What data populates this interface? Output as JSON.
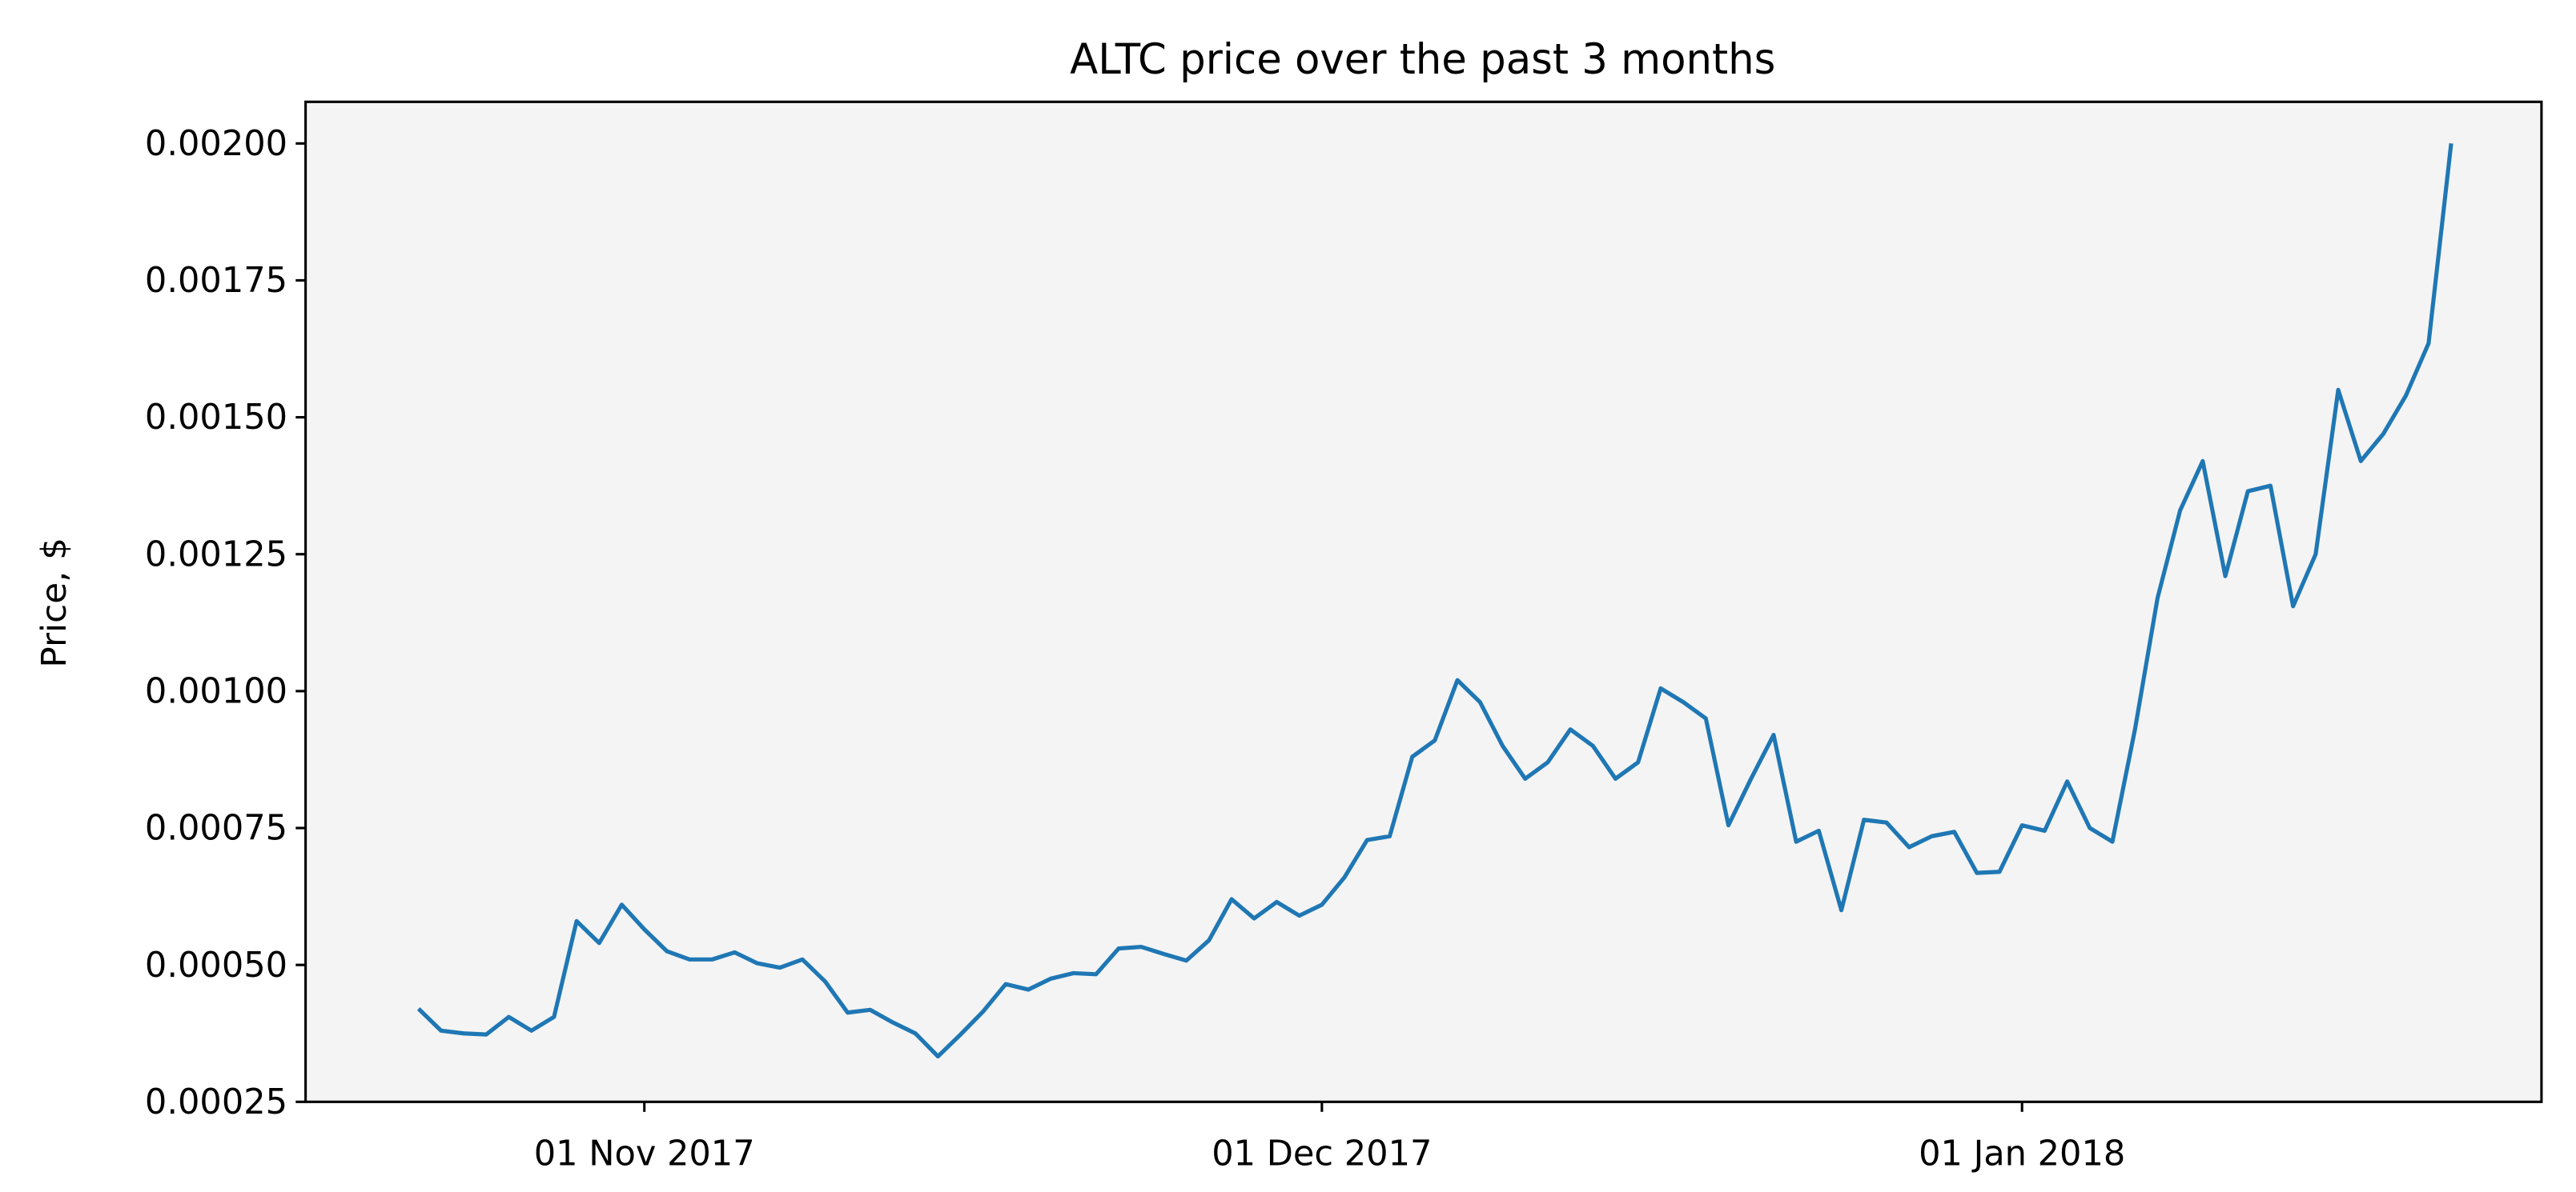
{
  "chart_data": {
    "type": "line",
    "title": "ALTC price over the past 3 months",
    "y_label": "Price, $",
    "x": [
      "2017-10-22",
      "2017-10-23",
      "2017-10-24",
      "2017-10-25",
      "2017-10-26",
      "2017-10-27",
      "2017-10-28",
      "2017-10-29",
      "2017-10-30",
      "2017-10-31",
      "2017-11-01",
      "2017-11-02",
      "2017-11-03",
      "2017-11-04",
      "2017-11-05",
      "2017-11-06",
      "2017-11-07",
      "2017-11-08",
      "2017-11-09",
      "2017-11-10",
      "2017-11-11",
      "2017-11-12",
      "2017-11-13",
      "2017-11-14",
      "2017-11-15",
      "2017-11-16",
      "2017-11-17",
      "2017-11-18",
      "2017-11-19",
      "2017-11-20",
      "2017-11-21",
      "2017-11-22",
      "2017-11-23",
      "2017-11-24",
      "2017-11-25",
      "2017-11-26",
      "2017-11-27",
      "2017-11-28",
      "2017-11-29",
      "2017-11-30",
      "2017-12-01",
      "2017-12-02",
      "2017-12-03",
      "2017-12-04",
      "2017-12-05",
      "2017-12-06",
      "2017-12-07",
      "2017-12-08",
      "2017-12-09",
      "2017-12-10",
      "2017-12-11",
      "2017-12-12",
      "2017-12-13",
      "2017-12-14",
      "2017-12-15",
      "2017-12-16",
      "2017-12-17",
      "2017-12-18",
      "2017-12-19",
      "2017-12-20",
      "2017-12-21",
      "2017-12-22",
      "2017-12-23",
      "2017-12-24",
      "2017-12-25",
      "2017-12-26",
      "2017-12-27",
      "2017-12-28",
      "2017-12-29",
      "2017-12-30",
      "2017-12-31",
      "2018-01-01",
      "2018-01-02",
      "2018-01-03",
      "2018-01-04",
      "2018-01-05",
      "2018-01-06",
      "2018-01-07",
      "2018-01-08",
      "2018-01-09",
      "2018-01-10",
      "2018-01-11",
      "2018-01-12",
      "2018-01-13",
      "2018-01-14",
      "2018-01-15",
      "2018-01-16",
      "2018-01-17",
      "2018-01-18",
      "2018-01-19",
      "2018-01-20"
    ],
    "series": [
      {
        "color": "#1f77b4",
        "values": [
          0.00042,
          0.00038,
          0.000375,
          0.000373,
          0.000405,
          0.00038,
          0.000405,
          0.00058,
          0.00054,
          0.00061,
          0.000565,
          0.000525,
          0.00051,
          0.00051,
          0.000523,
          0.000503,
          0.000495,
          0.00051,
          0.00047,
          0.000413,
          0.000418,
          0.000395,
          0.000375,
          0.000333,
          0.000373,
          0.000415,
          0.000465,
          0.000455,
          0.000475,
          0.000485,
          0.000483,
          0.00053,
          0.000533,
          0.00052,
          0.000508,
          0.000545,
          0.00062,
          0.000585,
          0.000615,
          0.00059,
          0.00061,
          0.00066,
          0.000728,
          0.000735,
          0.00088,
          0.00091,
          0.00102,
          0.00098,
          0.0009,
          0.00084,
          0.00087,
          0.00093,
          0.0009,
          0.00084,
          0.00087,
          0.001005,
          0.00098,
          0.00095,
          0.000755,
          0.00084,
          0.00092,
          0.000725,
          0.000745,
          0.0006,
          0.000765,
          0.00076,
          0.000715,
          0.000735,
          0.000743,
          0.000668,
          0.00067,
          0.000755,
          0.000745,
          0.000835,
          0.00075,
          0.000725,
          0.00093,
          0.00117,
          0.00133,
          0.00142,
          0.00121,
          0.001365,
          0.001375,
          0.001155,
          0.00125,
          0.00155,
          0.00142,
          0.00147,
          0.00154,
          0.001635,
          0.002
        ]
      }
    ],
    "xlim": [
      "2017-10-17",
      "2018-01-24"
    ],
    "xticks": [
      {
        "value": "2017-11-01",
        "label": "01 Nov 2017"
      },
      {
        "value": "2017-12-01",
        "label": "01 Dec 2017"
      },
      {
        "value": "2018-01-01",
        "label": "01 Jan 2018"
      }
    ],
    "ylim": [
      0.00025,
      0.002076
    ],
    "yticks": [
      {
        "value": 0.00025,
        "label": "0.00025"
      },
      {
        "value": 0.0005,
        "label": "0.00050"
      },
      {
        "value": 0.00075,
        "label": "0.00075"
      },
      {
        "value": 0.001,
        "label": "0.00100"
      },
      {
        "value": 0.00125,
        "label": "0.00125"
      },
      {
        "value": 0.0015,
        "label": "0.00150"
      },
      {
        "value": 0.00175,
        "label": "0.00175"
      },
      {
        "value": 0.002,
        "label": "0.00200"
      }
    ],
    "background": "#f4f4f4"
  }
}
